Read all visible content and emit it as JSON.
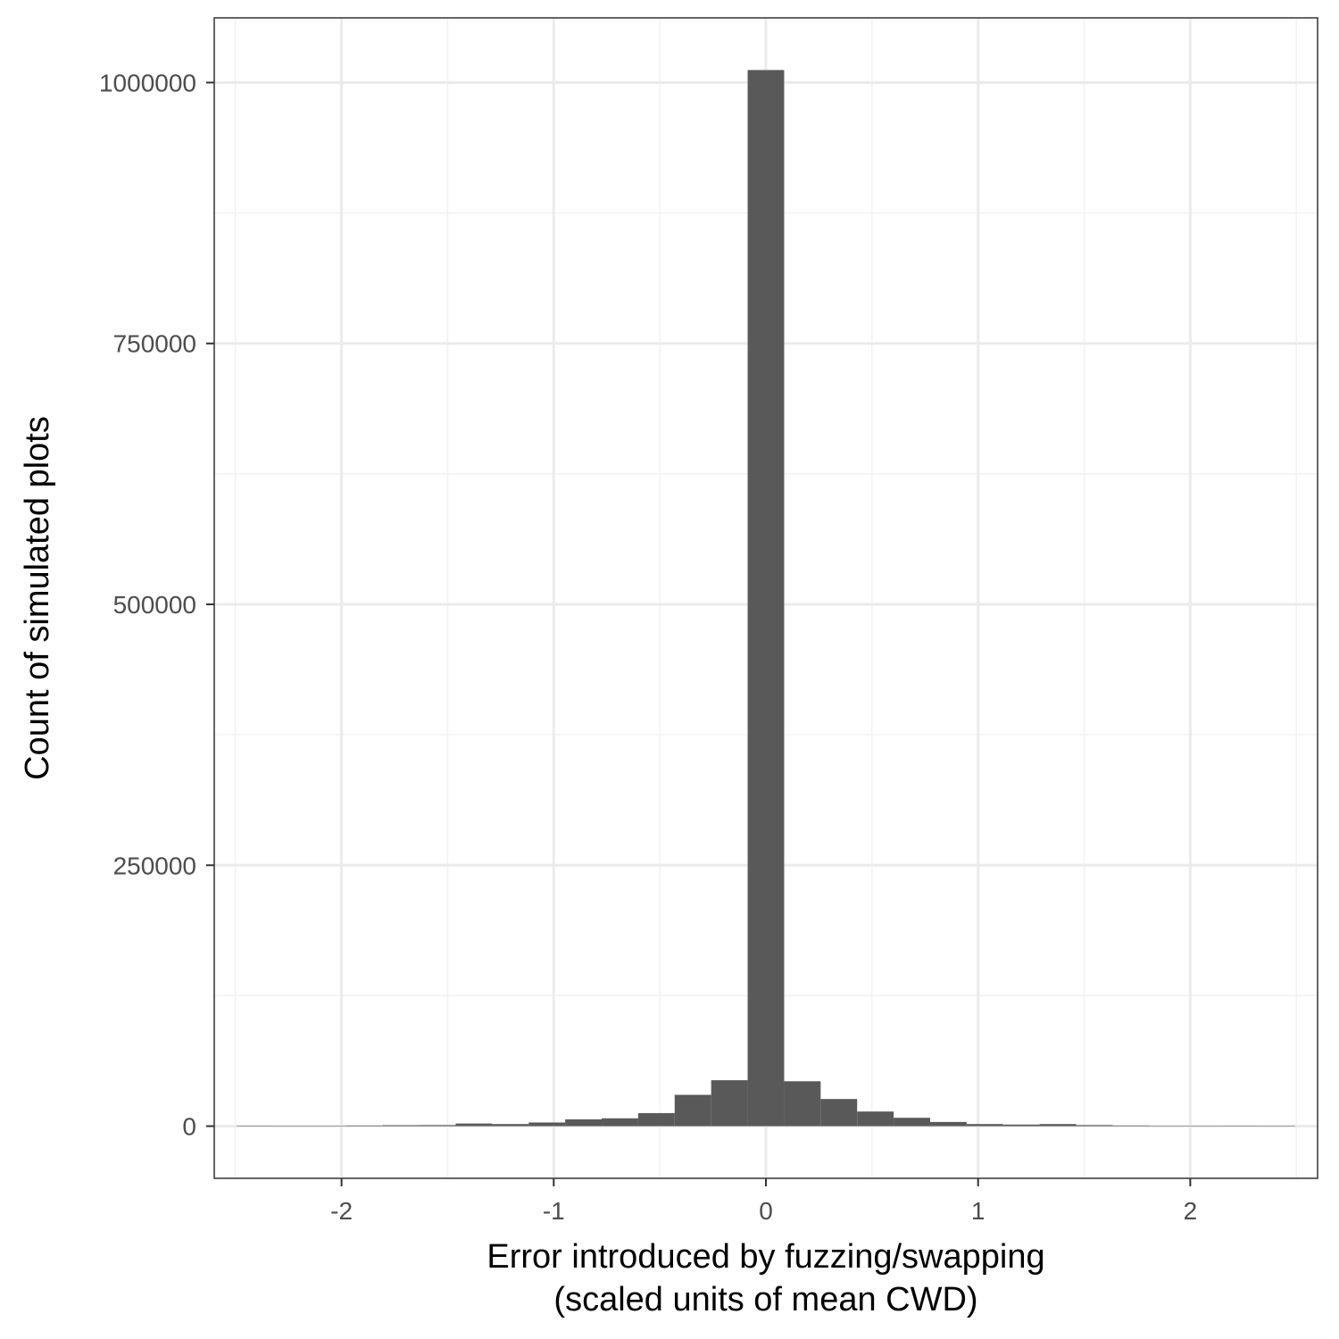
{
  "chart_data": {
    "type": "bar",
    "subtype": "histogram",
    "xlabel_line1": "Error introduced by fuzzing/swapping",
    "xlabel_line2": "(scaled units of mean CWD)",
    "ylabel": "Count of simulated plots",
    "xlim": [
      -2.6,
      2.6
    ],
    "ylim": [
      -50000,
      1062000
    ],
    "xticks": [
      -2,
      -1,
      0,
      1,
      2
    ],
    "xtick_labels": [
      "-2",
      "-1",
      "0",
      "1",
      "2"
    ],
    "yticks": [
      0,
      250000,
      500000,
      750000,
      1000000
    ],
    "ytick_labels": [
      "0",
      "250000",
      "500000",
      "750000",
      "1000000"
    ],
    "grid": true,
    "bin_width": 0.172,
    "bins": [
      {
        "x": -2.408,
        "y": 200
      },
      {
        "x": -2.236,
        "y": 300
      },
      {
        "x": -2.064,
        "y": 400
      },
      {
        "x": -1.892,
        "y": 600
      },
      {
        "x": -1.72,
        "y": 900
      },
      {
        "x": -1.548,
        "y": 1000
      },
      {
        "x": -1.376,
        "y": 2500
      },
      {
        "x": -1.204,
        "y": 2000
      },
      {
        "x": -1.032,
        "y": 3500
      },
      {
        "x": -0.86,
        "y": 6500
      },
      {
        "x": -0.688,
        "y": 7500
      },
      {
        "x": -0.516,
        "y": 12500
      },
      {
        "x": -0.344,
        "y": 30000
      },
      {
        "x": -0.172,
        "y": 44000
      },
      {
        "x": 0.0,
        "y": 1012000
      },
      {
        "x": 0.172,
        "y": 43000
      },
      {
        "x": 0.344,
        "y": 26000
      },
      {
        "x": 0.516,
        "y": 14000
      },
      {
        "x": 0.688,
        "y": 8000
      },
      {
        "x": 0.86,
        "y": 4000
      },
      {
        "x": 1.032,
        "y": 2000
      },
      {
        "x": 1.204,
        "y": 1500
      },
      {
        "x": 1.376,
        "y": 2000
      },
      {
        "x": 1.548,
        "y": 1000
      },
      {
        "x": 1.72,
        "y": 600
      },
      {
        "x": 1.892,
        "y": 400
      },
      {
        "x": 2.064,
        "y": 300
      },
      {
        "x": 2.236,
        "y": 200
      },
      {
        "x": 2.408,
        "y": 150
      }
    ],
    "colors": {
      "bar_fill": "#595959",
      "panel_border": "#333333",
      "grid_major": "#ebebeb",
      "grid_minor": "#f2f2f2",
      "tick_label": "#4d4d4d",
      "axis_title": "#000000"
    }
  }
}
